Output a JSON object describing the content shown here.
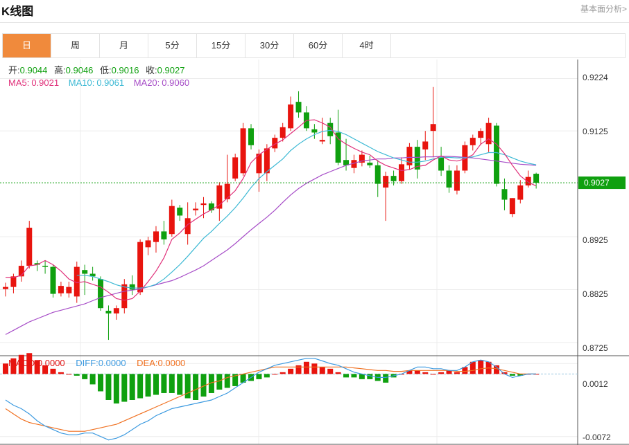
{
  "header": {
    "title": "K线图",
    "more_link": "基本面分析>"
  },
  "tabs": [
    {
      "label": "日",
      "active": true
    },
    {
      "label": "周",
      "active": false
    },
    {
      "label": "月",
      "active": false
    },
    {
      "label": "5分",
      "active": false
    },
    {
      "label": "15分",
      "active": false
    },
    {
      "label": "30分",
      "active": false
    },
    {
      "label": "60分",
      "active": false
    },
    {
      "label": "4时",
      "active": false
    }
  ],
  "ohlc": {
    "open_label": "开:",
    "open": "0.9044",
    "high_label": "高:",
    "high": "0.9046",
    "low_label": "低:",
    "low": "0.9016",
    "close_label": "收:",
    "close": "0.9027"
  },
  "ma_legend": [
    {
      "label": "MA5:",
      "value": "0.9021",
      "color": "#e0307a"
    },
    {
      "label": "MA10:",
      "value": "0.9061",
      "color": "#3cb9d4"
    },
    {
      "label": "MA20:",
      "value": "0.9060",
      "color": "#a64cc7"
    }
  ],
  "macd_legend": [
    {
      "label": "MACD:",
      "value": "0.0000",
      "color": "#e01414"
    },
    {
      "label": "DIFF:",
      "value": "0.0000",
      "color": "#3c9ae0"
    },
    {
      "label": "DEA:",
      "value": "0.0000",
      "color": "#f07020"
    }
  ],
  "colors": {
    "up": "#e8140e",
    "down": "#0fa00f",
    "grid": "#ececec",
    "last_price": "#0fa00f"
  },
  "chart_data": [
    {
      "type": "candlestick",
      "y_ticks": [
        "0.9224",
        "0.9125",
        "0.8925",
        "0.8825",
        "0.8725"
      ],
      "ylim": [
        0.87,
        0.926
      ],
      "last_price": "0.9027",
      "candles": [
        [
          0.8826,
          0.8838,
          0.8812,
          0.883
        ],
        [
          0.883,
          0.8855,
          0.8818,
          0.885
        ],
        [
          0.885,
          0.888,
          0.884,
          0.887
        ],
        [
          0.887,
          0.8955,
          0.8865,
          0.8942
        ],
        [
          0.8875,
          0.888,
          0.886,
          0.8872
        ],
        [
          0.887,
          0.888,
          0.8855,
          0.8868
        ],
        [
          0.8868,
          0.8872,
          0.881,
          0.8817
        ],
        [
          0.8818,
          0.884,
          0.8812,
          0.8832
        ],
        [
          0.8818,
          0.884,
          0.881,
          0.883
        ],
        [
          0.8812,
          0.8878,
          0.88,
          0.8868
        ],
        [
          0.8862,
          0.8872,
          0.8815,
          0.8855
        ],
        [
          0.8855,
          0.8868,
          0.8842,
          0.885
        ],
        [
          0.8845,
          0.885,
          0.8785,
          0.879
        ],
        [
          0.8785,
          0.8795,
          0.873,
          0.878
        ],
        [
          0.878,
          0.8795,
          0.8768,
          0.879
        ],
        [
          0.879,
          0.8845,
          0.878,
          0.8835
        ],
        [
          0.8835,
          0.8852,
          0.8815,
          0.8825
        ],
        [
          0.882,
          0.892,
          0.8815,
          0.8915
        ],
        [
          0.8905,
          0.8925,
          0.889,
          0.8918
        ],
        [
          0.8915,
          0.8945,
          0.8895,
          0.8935
        ],
        [
          0.8935,
          0.8955,
          0.891,
          0.892
        ],
        [
          0.893,
          0.8995,
          0.8925,
          0.8983
        ],
        [
          0.898,
          0.8985,
          0.8955,
          0.8965
        ],
        [
          0.893,
          0.899,
          0.891,
          0.896
        ],
        [
          0.8975,
          0.899,
          0.8965,
          0.8978
        ],
        [
          0.8985,
          0.9,
          0.896,
          0.8988
        ],
        [
          0.8988,
          0.8992,
          0.897,
          0.8975
        ],
        [
          0.8978,
          0.9028,
          0.8955,
          0.9022
        ],
        [
          0.8996,
          0.908,
          0.899,
          0.9025
        ],
        [
          0.9035,
          0.9082,
          0.903,
          0.9075
        ],
        [
          0.9045,
          0.914,
          0.904,
          0.913
        ],
        [
          0.913,
          0.9138,
          0.909,
          0.9098
        ],
        [
          0.9045,
          0.909,
          0.901,
          0.9082
        ],
        [
          0.9045,
          0.91,
          0.903,
          0.9092
        ],
        [
          0.9092,
          0.9118,
          0.9085,
          0.9112
        ],
        [
          0.9112,
          0.914,
          0.9105,
          0.9132
        ],
        [
          0.913,
          0.919,
          0.9125,
          0.9175
        ],
        [
          0.918,
          0.92,
          0.915,
          0.916
        ],
        [
          0.916,
          0.9172,
          0.9125,
          0.913
        ],
        [
          0.9128,
          0.9138,
          0.911,
          0.9122
        ],
        [
          0.9105,
          0.915,
          0.91,
          0.9108
        ],
        [
          0.914,
          0.915,
          0.91,
          0.9115
        ],
        [
          0.9122,
          0.9165,
          0.906,
          0.9065
        ],
        [
          0.907,
          0.911,
          0.905,
          0.906
        ],
        [
          0.9055,
          0.908,
          0.9045,
          0.907
        ],
        [
          0.9065,
          0.9088,
          0.9058,
          0.908
        ],
        [
          0.9065,
          0.9078,
          0.9055,
          0.906
        ],
        [
          0.906,
          0.907,
          0.9,
          0.9025
        ],
        [
          0.9018,
          0.9048,
          0.8955,
          0.904
        ],
        [
          0.904,
          0.905,
          0.9022,
          0.903
        ],
        [
          0.903,
          0.9075,
          0.9025,
          0.9062
        ],
        [
          0.906,
          0.9102,
          0.9052,
          0.9095
        ],
        [
          0.9095,
          0.9108,
          0.9035,
          0.9052
        ],
        [
          0.909,
          0.9125,
          0.907,
          0.9105
        ],
        [
          0.9125,
          0.9208,
          0.9075,
          0.9138
        ],
        [
          0.9075,
          0.9095,
          0.904,
          0.905
        ],
        [
          0.905,
          0.906,
          0.9008,
          0.9018
        ],
        [
          0.9012,
          0.906,
          0.9005,
          0.905
        ],
        [
          0.905,
          0.9105,
          0.9045,
          0.9098
        ],
        [
          0.9098,
          0.9118,
          0.9088,
          0.9112
        ],
        [
          0.9112,
          0.913,
          0.9098,
          0.9125
        ],
        [
          0.91,
          0.915,
          0.9085,
          0.914
        ],
        [
          0.9135,
          0.914,
          0.902,
          0.9025
        ],
        [
          0.9015,
          0.9035,
          0.8975,
          0.8995
        ],
        [
          0.8968,
          0.8998,
          0.8962,
          0.8998
        ],
        [
          0.8995,
          0.9032,
          0.8988,
          0.9022
        ],
        [
          0.9022,
          0.905,
          0.9018,
          0.9038
        ],
        [
          0.9044,
          0.9046,
          0.9016,
          0.9027
        ]
      ],
      "ma5": [
        0.8848,
        0.8848,
        0.8852,
        0.887,
        0.8872,
        0.888,
        0.8872,
        0.886,
        0.8845,
        0.8838,
        0.884,
        0.8835,
        0.883,
        0.882,
        0.8808,
        0.8805,
        0.8808,
        0.8822,
        0.884,
        0.886,
        0.8885,
        0.892,
        0.8932,
        0.8948,
        0.8958,
        0.8968,
        0.8976,
        0.8985,
        0.8998,
        0.9012,
        0.9035,
        0.9065,
        0.908,
        0.909,
        0.91,
        0.9108,
        0.912,
        0.9132,
        0.9145,
        0.9146,
        0.914,
        0.9132,
        0.911,
        0.91,
        0.9092,
        0.9085,
        0.908,
        0.9068,
        0.906,
        0.9055,
        0.905,
        0.9052,
        0.9058,
        0.906,
        0.907,
        0.9078,
        0.907,
        0.9068,
        0.9072,
        0.908,
        0.91,
        0.911,
        0.91,
        0.9082,
        0.906,
        0.904,
        0.9028,
        0.9021
      ],
      "ma10": [
        null,
        null,
        null,
        null,
        null,
        null,
        null,
        null,
        null,
        0.8852,
        0.8852,
        0.885,
        0.8845,
        0.884,
        0.8834,
        0.883,
        0.8828,
        0.8828,
        0.883,
        0.8835,
        0.8845,
        0.8858,
        0.8872,
        0.8888,
        0.8905,
        0.8922,
        0.8935,
        0.895,
        0.8964,
        0.898,
        0.8998,
        0.9018,
        0.9035,
        0.9048,
        0.906,
        0.9072,
        0.9088,
        0.91,
        0.911,
        0.9118,
        0.9124,
        0.9126,
        0.9124,
        0.9118,
        0.911,
        0.9102,
        0.9094,
        0.9086,
        0.908,
        0.9074,
        0.907,
        0.9066,
        0.9066,
        0.9068,
        0.9072,
        0.9075,
        0.9075,
        0.9074,
        0.9074,
        0.9076,
        0.908,
        0.9084,
        0.9084,
        0.908,
        0.9074,
        0.9068,
        0.9064,
        0.9061
      ],
      "ma20": [
        0.874,
        0.8748,
        0.8756,
        0.8764,
        0.877,
        0.8776,
        0.8782,
        0.8786,
        0.879,
        0.8794,
        0.8798,
        0.8804,
        0.881,
        0.8814,
        0.8818,
        0.8822,
        0.8824,
        0.8826,
        0.883,
        0.8834,
        0.8838,
        0.8842,
        0.8848,
        0.8855,
        0.8862,
        0.887,
        0.888,
        0.889,
        0.89,
        0.8912,
        0.8925,
        0.8938,
        0.895,
        0.8962,
        0.8975,
        0.899,
        0.9004,
        0.9016,
        0.9026,
        0.9034,
        0.9042,
        0.9048,
        0.9054,
        0.906,
        0.9064,
        0.9068,
        0.907,
        0.9072,
        0.9072,
        0.9074,
        0.9074,
        0.9075,
        0.9075,
        0.9076,
        0.9076,
        0.9077,
        0.9077,
        0.9076,
        0.9075,
        0.9074,
        0.9072,
        0.907,
        0.9068,
        0.9066,
        0.9064,
        0.9062,
        0.9061,
        0.906
      ]
    },
    {
      "type": "macd",
      "y_ticks": [
        "0.0012",
        "-0.0072"
      ],
      "ylim": [
        -0.0081,
        0.0021
      ],
      "histogram": [
        0.0012,
        0.0018,
        0.0022,
        0.0024,
        0.0016,
        0.001,
        0.0006,
        0.0002,
        0.0,
        -0.0002,
        -0.0006,
        -0.0012,
        -0.002,
        -0.003,
        -0.0034,
        -0.0032,
        -0.003,
        -0.0028,
        -0.0026,
        -0.0024,
        -0.0022,
        -0.0022,
        -0.0024,
        -0.0028,
        -0.003,
        -0.0026,
        -0.0022,
        -0.0018,
        -0.0016,
        -0.0014,
        -0.001,
        -0.0008,
        -0.0006,
        -0.0004,
        0.0,
        0.0002,
        0.0006,
        0.001,
        0.0014,
        0.0012,
        0.0008,
        0.0006,
        0.0002,
        -0.0004,
        -0.0004,
        -0.0006,
        -0.0006,
        -0.0008,
        -0.001,
        -0.0004,
        0.0,
        0.0004,
        0.0004,
        0.0002,
        0.0,
        0.0002,
        0.0004,
        0.0002,
        0.0008,
        0.0014,
        0.0016,
        0.0014,
        0.001,
        0.0002,
        -0.0002,
        -0.0002,
        0.0,
        0.0
      ],
      "diff": [
        -0.003,
        -0.0036,
        -0.004,
        -0.0046,
        -0.0054,
        -0.006,
        -0.0064,
        -0.0068,
        -0.007,
        -0.007,
        -0.0068,
        -0.0068,
        -0.0072,
        -0.0076,
        -0.0074,
        -0.007,
        -0.0064,
        -0.0058,
        -0.0054,
        -0.0048,
        -0.0044,
        -0.004,
        -0.0038,
        -0.0036,
        -0.0034,
        -0.0032,
        -0.003,
        -0.0026,
        -0.0022,
        -0.0016,
        -0.001,
        -0.0004,
        0.0002,
        0.0006,
        0.001,
        0.0012,
        0.0014,
        0.0016,
        0.0018,
        0.0018,
        0.0015,
        0.0012,
        0.001,
        0.0006,
        0.0002,
        0.0,
        -0.0002,
        -0.0004,
        -0.0004,
        -0.0002,
        0.0,
        0.0004,
        0.0008,
        0.0008,
        0.0006,
        0.0006,
        0.0004,
        0.0004,
        0.0008,
        0.0014,
        0.0016,
        0.0014,
        0.0008,
        0.0,
        -0.0004,
        -0.0002,
        0.0,
        0.0
      ],
      "dea": [
        -0.004,
        -0.0046,
        -0.0052,
        -0.0056,
        -0.0058,
        -0.006,
        -0.0062,
        -0.0064,
        -0.0066,
        -0.0066,
        -0.0066,
        -0.0064,
        -0.0062,
        -0.006,
        -0.0058,
        -0.0054,
        -0.005,
        -0.0046,
        -0.0042,
        -0.0038,
        -0.0034,
        -0.003,
        -0.0026,
        -0.0022,
        -0.0018,
        -0.0014,
        -0.001,
        -0.0008,
        -0.0004,
        -0.0002,
        0.0,
        0.0002,
        0.0004,
        0.0006,
        0.0008,
        0.0008,
        0.0008,
        0.0008,
        0.0008,
        0.0008,
        0.0008,
        0.0008,
        0.0008,
        0.0008,
        0.0007,
        0.0006,
        0.0005,
        0.0004,
        0.0004,
        0.0003,
        0.0003,
        0.0004,
        0.0004,
        0.0004,
        0.0004,
        0.0004,
        0.0004,
        0.0003,
        0.0003,
        0.0004,
        0.0006,
        0.0007,
        0.0006,
        0.0004,
        0.0002,
        0.0,
        0.0,
        0.0
      ]
    }
  ]
}
